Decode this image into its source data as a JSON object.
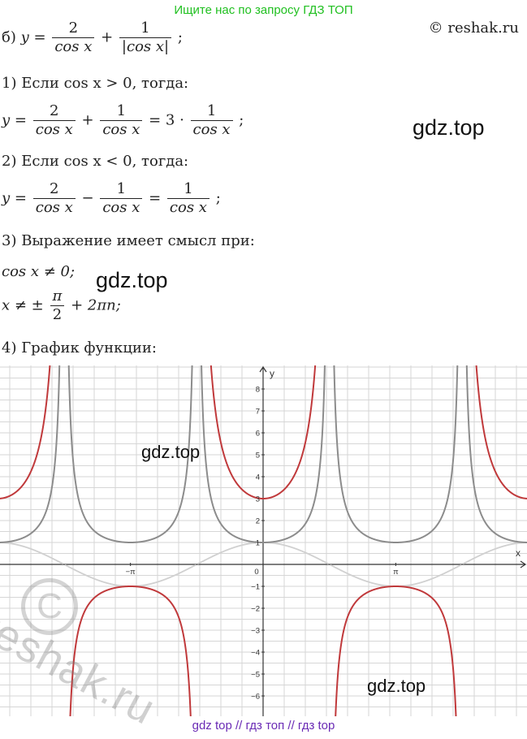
{
  "banner_top": "Ищите нас по запросу ГДЗ ТОП",
  "copyright": "© reshak.ru",
  "part_b": {
    "prefix": "б)",
    "y": "y",
    "eq": "=",
    "num1": "2",
    "den1": "cos x",
    "plus": "+",
    "num2": "1",
    "den2": "|cos x|",
    "end": ";"
  },
  "case1": {
    "label": "1) Если cos x > 0, тогда:",
    "y": "y",
    "eq": "=",
    "num1": "2",
    "den1": "cos x",
    "op": "+",
    "num2": "1",
    "den2": "cos x",
    "eq2": "= 3 ·",
    "num3": "1",
    "den3": "cos x",
    "end": ";"
  },
  "case2": {
    "label": "2) Если cos x < 0, тогда:",
    "y": "y",
    "eq": "=",
    "num1": "2",
    "den1": "cos x",
    "op": "−",
    "num2": "1",
    "den2": "cos x",
    "eq2": "=",
    "num3": "1",
    "den3": "cos x",
    "end": ";"
  },
  "case3": {
    "label": "3) Выражение имеет смысл при:",
    "cond1": "cos x ≠ 0;",
    "cond2_prefix": "x ≠ ±",
    "pi": "π",
    "two": "2",
    "cond2_suffix": "+ 2πn;"
  },
  "case4": {
    "label": "4) График функции:"
  },
  "watermarks": {
    "w1": "gdz.top",
    "w2": "gdz.top",
    "w3": "gdz.top",
    "w4": "gdz.top",
    "reshak": "reshak.ru",
    "c": "C"
  },
  "banner_bottom": "gdz top  //  гдз топ  //  гдз top",
  "chart_data": {
    "type": "line",
    "title": "",
    "xlabel": "x",
    "ylabel": "y",
    "xlim": [
      -5.3,
      5.3
    ],
    "ylim": [
      -6.9,
      8.9
    ],
    "grid": true,
    "x_ticks": [
      {
        "value": -3.14159,
        "label": "−π"
      },
      {
        "value": 0,
        "label": "0"
      },
      {
        "value": 3.14159,
        "label": "π"
      }
    ],
    "y_ticks": [
      -6,
      -5,
      -4,
      -3,
      -2,
      -1,
      1,
      2,
      3,
      4,
      5,
      6,
      7,
      8
    ],
    "series": [
      {
        "formula": "cos x",
        "color": "#d0d0d0"
      },
      {
        "formula": "1/|cos x|",
        "color": "#8c8c8c"
      },
      {
        "formula": "2/cos x + 1/|cos x|",
        "color": "#c0393b"
      }
    ]
  }
}
